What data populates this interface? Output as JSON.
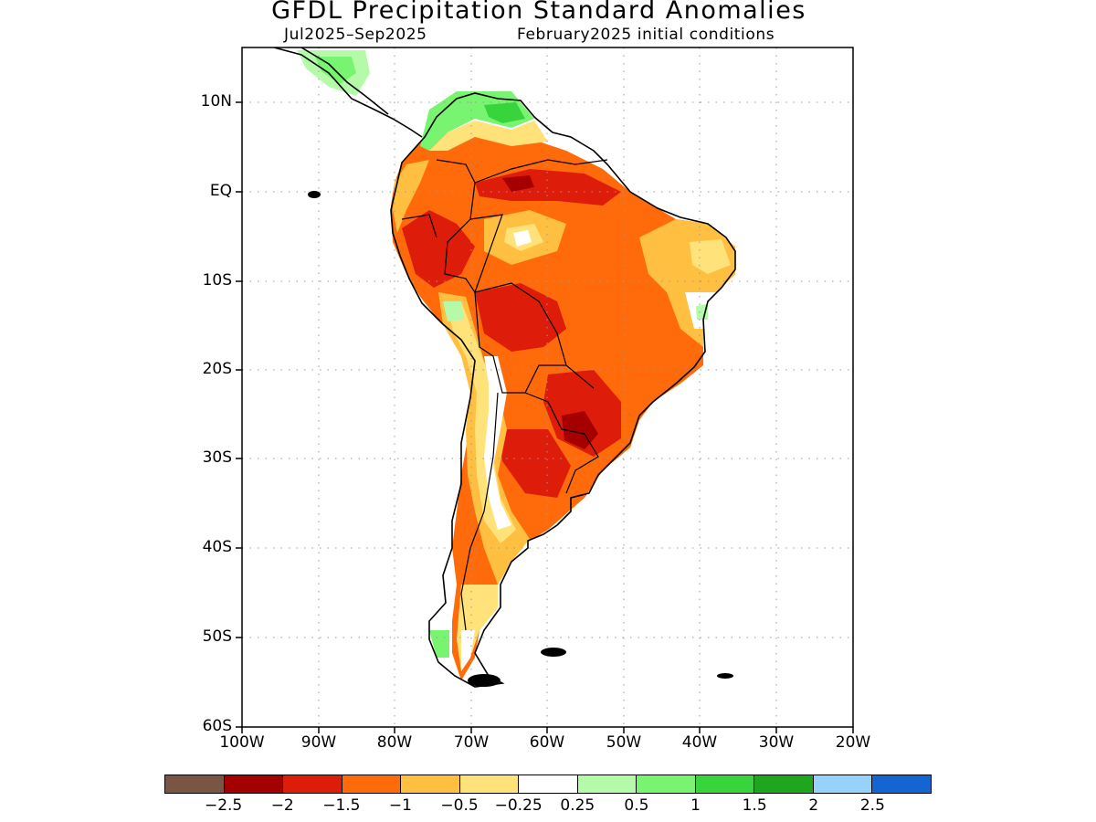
{
  "title": "GFDL Precipitation Standard Anomalies",
  "subtitle_left": "Jul2025–Sep2025",
  "subtitle_right": "February2025 initial conditions",
  "map": {
    "lon_range": [
      -100,
      -20
    ],
    "lat_range": [
      -60,
      15
    ],
    "lat_ticks": [
      "10N",
      "EQ",
      "10S",
      "20S",
      "30S",
      "40S",
      "50S",
      "60S"
    ],
    "lon_ticks": [
      "100W",
      "90W",
      "80W",
      "70W",
      "60W",
      "50W",
      "40W",
      "30W",
      "20W"
    ],
    "gridlines": "dotted"
  },
  "colorbar": {
    "colors": [
      "#7a5544",
      "#a40000",
      "#dd1c0a",
      "#ff6a0a",
      "#ffbf40",
      "#ffe27a",
      "#ffffff",
      "#b4faa8",
      "#78f470",
      "#38d43c",
      "#1ea71e",
      "#96d2fa",
      "#1464d2"
    ],
    "labels": [
      "−2.5",
      "−2",
      "−1.5",
      "−1",
      "−0.5",
      "−0.25",
      "0.25",
      "0.5",
      "1",
      "1.5",
      "2",
      "2.5"
    ]
  }
}
